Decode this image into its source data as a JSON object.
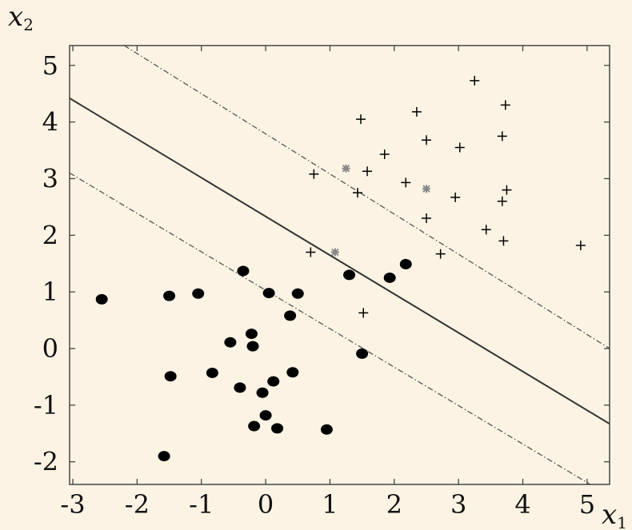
{
  "chart_data": {
    "type": "scatter",
    "title": "",
    "xlabel": "x",
    "xlabel_subscript": "1",
    "ylabel": "x",
    "ylabel_subscript": "2",
    "xlim": [
      -3.05,
      5.35
    ],
    "ylim": [
      -2.4,
      5.35
    ],
    "xticks": [
      "-3",
      "-2",
      "-1",
      "0",
      "1",
      "2",
      "3",
      "4",
      "5"
    ],
    "yticks": [
      "-2",
      "-1",
      "0",
      "1",
      "2",
      "3",
      "4",
      "5"
    ],
    "grid": false,
    "legend": "none",
    "series": [
      {
        "marker": "dot",
        "color": "#000000",
        "points": [
          [
            -2.55,
            0.87
          ],
          [
            -1.5,
            0.93
          ],
          [
            -1.05,
            0.97
          ],
          [
            -0.35,
            1.37
          ],
          [
            0.05,
            0.98
          ],
          [
            0.5,
            0.97
          ],
          [
            0.38,
            0.58
          ],
          [
            -0.55,
            0.11
          ],
          [
            -0.22,
            0.26
          ],
          [
            -0.2,
            0.04
          ],
          [
            -1.48,
            -0.49
          ],
          [
            -0.83,
            -0.43
          ],
          [
            -0.4,
            -0.69
          ],
          [
            -0.05,
            -0.78
          ],
          [
            0.12,
            -0.58
          ],
          [
            0.42,
            -0.42
          ],
          [
            -0.18,
            -1.37
          ],
          [
            0.0,
            -1.18
          ],
          [
            0.18,
            -1.41
          ],
          [
            0.95,
            -1.43
          ],
          [
            -1.58,
            -1.9
          ],
          [
            1.3,
            1.3
          ],
          [
            1.93,
            1.25
          ],
          [
            2.18,
            1.49
          ],
          [
            1.5,
            -0.09
          ]
        ]
      },
      {
        "marker": "plus",
        "color": "#000000",
        "points": [
          [
            0.7,
            1.7
          ],
          [
            0.75,
            3.08
          ],
          [
            1.48,
            4.05
          ],
          [
            1.85,
            3.43
          ],
          [
            1.58,
            3.13
          ],
          [
            1.43,
            2.75
          ],
          [
            2.18,
            2.93
          ],
          [
            2.35,
            4.18
          ],
          [
            2.5,
            3.68
          ],
          [
            2.5,
            2.3
          ],
          [
            2.72,
            1.67
          ],
          [
            3.02,
            3.55
          ],
          [
            2.95,
            2.67
          ],
          [
            3.25,
            4.73
          ],
          [
            3.43,
            2.1
          ],
          [
            3.68,
            3.75
          ],
          [
            3.73,
            4.3
          ],
          [
            3.68,
            2.6
          ],
          [
            3.75,
            2.8
          ],
          [
            3.7,
            1.9
          ],
          [
            4.9,
            1.82
          ],
          [
            1.52,
            0.63
          ]
        ]
      },
      {
        "marker": "asterisk",
        "color": "#888888",
        "points": [
          [
            1.25,
            3.18
          ],
          [
            2.5,
            2.82
          ],
          [
            1.08,
            1.7
          ]
        ]
      }
    ],
    "lines": [
      {
        "style": "solid",
        "color": "#333333",
        "from": [
          -3.05,
          4.42
        ],
        "to": [
          5.35,
          -1.33
        ]
      },
      {
        "style": "dash-dot",
        "color": "#555555",
        "from": [
          -2.2,
          5.35
        ],
        "to": [
          5.35,
          0.0
        ]
      },
      {
        "style": "dash-dot",
        "color": "#555555",
        "from": [
          -3.05,
          3.1
        ],
        "to": [
          5.05,
          -2.4
        ]
      }
    ]
  }
}
